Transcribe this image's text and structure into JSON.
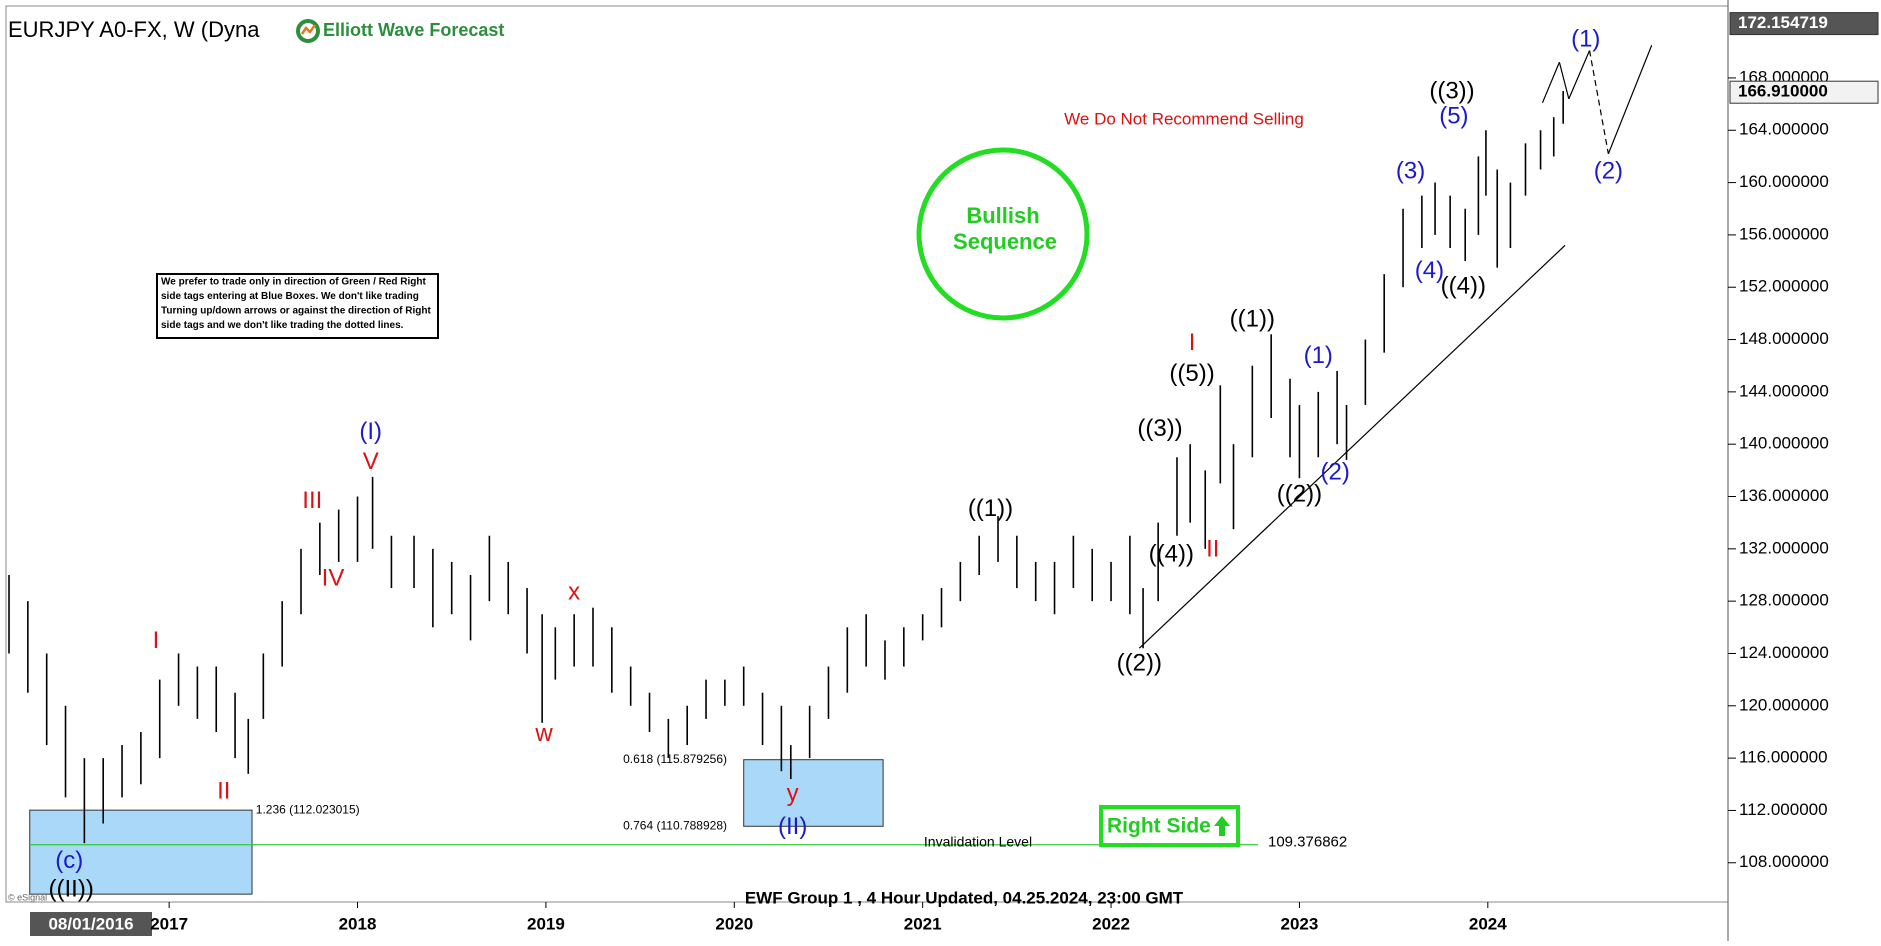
{
  "chart_data": {
    "type": "ohlc",
    "title": "EURJPY A0-FX, W (Dyna",
    "logo": "Elliott Wave Forecast",
    "footer": "EWF Group 1 , 4 Hour Updated, 04.25.2024, 23:00 GMT",
    "copyright": "© eSignal",
    "start_label": "08/01/2016",
    "bar_color": "#000000",
    "xlim": [
      2016.134,
      2025.275
    ],
    "ylim": [
      105,
      173.5
    ],
    "xticks": [
      2017,
      2018,
      2019,
      2020,
      2021,
      2022,
      2023,
      2024
    ],
    "yticks": [
      {
        "value": 108,
        "label": "108.000000"
      },
      {
        "value": 112,
        "label": "112.000000"
      },
      {
        "value": 116,
        "label": "116.000000"
      },
      {
        "value": 120,
        "label": "120.000000"
      },
      {
        "value": 124,
        "label": "124.000000"
      },
      {
        "value": 128,
        "label": "128.000000"
      },
      {
        "value": 132,
        "label": "132.000000"
      },
      {
        "value": 136,
        "label": "136.000000"
      },
      {
        "value": 140,
        "label": "140.000000"
      },
      {
        "value": 144,
        "label": "144.000000"
      },
      {
        "value": 148,
        "label": "148.000000"
      },
      {
        "value": 152,
        "label": "152.000000"
      },
      {
        "value": 156,
        "label": "156.000000"
      },
      {
        "value": 160,
        "label": "160.000000"
      },
      {
        "value": 164,
        "label": "164.000000"
      },
      {
        "value": 168,
        "label": "168.000000"
      }
    ],
    "price_markers": [
      {
        "value": 172.154719,
        "label": "172.154719"
      },
      {
        "value": 166.91,
        "label": "166.910000"
      }
    ],
    "x": [
      2016.15,
      2016.25,
      2016.35,
      2016.45,
      2016.55,
      2016.65,
      2016.75,
      2016.85,
      2016.95,
      2017.05,
      2017.15,
      2017.25,
      2017.35,
      2017.42,
      2017.5,
      2017.6,
      2017.7,
      2017.8,
      2017.9,
      2018.0,
      2018.08,
      2018.18,
      2018.3,
      2018.4,
      2018.5,
      2018.6,
      2018.7,
      2018.8,
      2018.9,
      2018.98,
      2019.05,
      2019.15,
      2019.25,
      2019.35,
      2019.45,
      2019.55,
      2019.65,
      2019.75,
      2019.85,
      2019.95,
      2020.05,
      2020.15,
      2020.25,
      2020.3,
      2020.4,
      2020.5,
      2020.6,
      2020.7,
      2020.8,
      2020.9,
      2021.0,
      2021.1,
      2021.2,
      2021.3,
      2021.4,
      2021.5,
      2021.6,
      2021.7,
      2021.8,
      2021.9,
      2022.0,
      2022.1,
      2022.17,
      2022.25,
      2022.35,
      2022.42,
      2022.5,
      2022.58,
      2022.65,
      2022.75,
      2022.85,
      2022.95,
      2023.0,
      2023.1,
      2023.2,
      2023.25,
      2023.35,
      2023.45,
      2023.55,
      2023.65,
      2023.72,
      2023.8,
      2023.88,
      2023.95,
      2023.99,
      2024.05,
      2024.12,
      2024.2,
      2024.28,
      2024.35,
      2024.4
    ],
    "high": [
      130,
      128,
      124,
      120,
      116,
      116,
      117,
      118,
      122,
      124,
      123,
      123,
      121,
      119,
      124,
      128,
      132,
      134,
      135,
      136,
      137.5,
      133,
      133,
      132,
      131,
      130,
      133,
      131,
      129,
      127,
      126,
      127,
      127.5,
      126,
      123,
      121,
      119,
      120,
      122,
      122,
      123,
      121,
      120,
      117,
      120,
      123,
      126,
      127,
      125,
      126,
      127,
      129,
      131,
      133,
      134.5,
      133,
      131,
      131,
      133,
      132,
      131,
      133,
      129,
      134,
      139,
      140,
      138,
      144.5,
      140,
      146,
      148.4,
      145,
      143,
      144,
      145.6,
      143,
      148,
      153,
      158,
      159,
      160,
      159,
      158,
      162,
      164,
      161,
      160,
      163,
      164,
      165,
      167
    ],
    "low": [
      124,
      121,
      117,
      113,
      109.5,
      111,
      113,
      114,
      116,
      120,
      119,
      118,
      116,
      114.8,
      119,
      123,
      127,
      130,
      131,
      131,
      132,
      129,
      129,
      126,
      127,
      125,
      128,
      127,
      124,
      118.7,
      122,
      123,
      123,
      121,
      120,
      118,
      116,
      117,
      119,
      120,
      120,
      117,
      115,
      114.4,
      116,
      119,
      121,
      123,
      122,
      123,
      125,
      126,
      128,
      130,
      131,
      129,
      128,
      127,
      129,
      128,
      128,
      127,
      124.4,
      128,
      133,
      134,
      132,
      137,
      133.5,
      139,
      142,
      139,
      137.4,
      139,
      140,
      138.8,
      143,
      147,
      152,
      155,
      156,
      155,
      154,
      156,
      159,
      153.5,
      155,
      159,
      161,
      162,
      164.5
    ],
    "annotations": [
      {
        "text": "((II))",
        "x": 2016.48,
        "y": 105.9,
        "color": "#000000"
      },
      {
        "text": "(c)",
        "x": 2016.47,
        "y": 108.1,
        "color": "#1a1acc"
      },
      {
        "text": "I",
        "x": 2016.93,
        "y": 124.9,
        "color": "#dd1111"
      },
      {
        "text": "II",
        "x": 2017.29,
        "y": 113.4,
        "color": "#dd1111"
      },
      {
        "text": "III",
        "x": 2017.76,
        "y": 135.6,
        "color": "#dd1111"
      },
      {
        "text": "IV",
        "x": 2017.87,
        "y": 129.7,
        "color": "#dd1111"
      },
      {
        "text": "V",
        "x": 2018.07,
        "y": 138.6,
        "color": "#dd1111"
      },
      {
        "text": "(I)",
        "x": 2018.07,
        "y": 140.9,
        "color": "#1a1acc"
      },
      {
        "text": "w",
        "x": 2018.99,
        "y": 117.8,
        "color": "#dd1111"
      },
      {
        "text": "x",
        "x": 2019.15,
        "y": 128.6,
        "color": "#dd1111"
      },
      {
        "text": "y",
        "x": 2020.31,
        "y": 113.2,
        "color": "#dd1111"
      },
      {
        "text": "(II)",
        "x": 2020.31,
        "y": 110.7,
        "color": "#1a1acc"
      },
      {
        "text": "((1))",
        "x": 2021.36,
        "y": 135,
        "color": "#000000"
      },
      {
        "text": "((2))",
        "x": 2022.15,
        "y": 123.2,
        "color": "#000000"
      },
      {
        "text": "((3))",
        "x": 2022.26,
        "y": 141.1,
        "color": "#000000"
      },
      {
        "text": "((4))",
        "x": 2022.32,
        "y": 131.5,
        "color": "#000000"
      },
      {
        "text": "((5))",
        "x": 2022.43,
        "y": 145.3,
        "color": "#000000"
      },
      {
        "text": "I",
        "x": 2022.43,
        "y": 147.7,
        "color": "#dd1111"
      },
      {
        "text": "II",
        "x": 2022.54,
        "y": 131.9,
        "color": "#dd1111"
      },
      {
        "text": "((1))",
        "x": 2022.75,
        "y": 149.5,
        "color": "#000000"
      },
      {
        "text": "((2))",
        "x": 2023.0,
        "y": 136.1,
        "color": "#000000"
      },
      {
        "text": "(1)",
        "x": 2023.1,
        "y": 146.7,
        "color": "#1a1acc"
      },
      {
        "text": "(2)",
        "x": 2023.19,
        "y": 137.8,
        "color": "#1a1acc"
      },
      {
        "text": "(3)",
        "x": 2023.59,
        "y": 160.8,
        "color": "#1a1acc"
      },
      {
        "text": "(4)",
        "x": 2023.69,
        "y": 153.2,
        "color": "#1a1acc"
      },
      {
        "text": "((3))",
        "x": 2023.81,
        "y": 166.9,
        "color": "#000000"
      },
      {
        "text": "(5)",
        "x": 2023.82,
        "y": 165,
        "color": "#1a1acc"
      },
      {
        "text": "((4))",
        "x": 2023.87,
        "y": 152,
        "color": "#000000"
      },
      {
        "text": "(1)",
        "x": 2024.52,
        "y": 170.9,
        "color": "#1a1acc"
      },
      {
        "text": "(2)",
        "x": 2024.64,
        "y": 160.8,
        "color": "#1a1acc"
      }
    ],
    "boxes": [
      {
        "x": [
          2016.26,
          2017.44
        ],
        "y": [
          105.6,
          112.023015
        ]
      },
      {
        "x": [
          2020.05,
          2020.79
        ],
        "y": [
          110.788928,
          115.879256
        ]
      }
    ],
    "box_color": "#a9d8f8",
    "fib_levels": [
      {
        "value": 112.023015,
        "label": "1.236 (112.023015)",
        "x": 2017.46
      },
      {
        "value": 115.879256,
        "label": "0.618 (115.879256)",
        "x": 2019.41
      },
      {
        "value": 110.788928,
        "label": "0.764 (110.788928)",
        "x": 2019.41
      }
    ],
    "invalidation": {
      "value": 109.376862,
      "label": "109.376862",
      "text": "Invalidation Level",
      "x": [
        2016.26,
        2022.78
      ],
      "color": "#33cc33"
    },
    "trendline": {
      "x": [
        2022.15,
        2024.41
      ],
      "y": [
        124.4,
        155.2
      ]
    },
    "projection": {
      "x": [
        2024.29,
        2024.38,
        2024.43,
        2024.54,
        2024.64,
        2024.87
      ],
      "y": [
        166.1,
        169.2,
        166.4,
        170.1,
        162.2,
        170.5
      ]
    },
    "warning": "We Do Not Recommend Selling",
    "badge_lines": [
      "Bullish",
      "Sequence"
    ],
    "right_side": "Right Side",
    "note_lines": [
      "We prefer to trade only in direction of Green / Red Right",
      "side tags entering at Blue Boxes. We don't like trading",
      "Turning up/down arrows or against the direction of Right",
      "side tags and we don't like trading the dotted lines."
    ]
  }
}
